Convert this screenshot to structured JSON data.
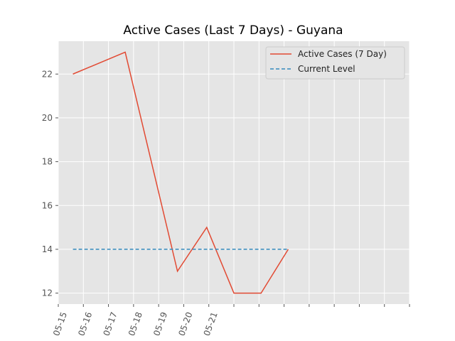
{
  "chart_data": {
    "type": "line",
    "title": "Active Cases (Last 7 Days) - Guyana",
    "xlabel": "",
    "ylabel": "",
    "x_tick_labels": [
      "05-15",
      "05-16",
      "05-17",
      "05-18",
      "05-19",
      "05-20",
      "05-21"
    ],
    "x_range": [
      "2020-05-15",
      "2020-05-22"
    ],
    "ylim": [
      11.5,
      23.5
    ],
    "y_ticks": [
      12,
      14,
      16,
      18,
      20,
      22
    ],
    "grid": true,
    "legend_position": "top-right",
    "series": [
      {
        "name": "Active Cases (7 Day)",
        "style": "solid",
        "color": "#E24A33",
        "x": [
          "2020-05-15 14:00",
          "2020-05-17 16:00",
          "2020-05-19 18:00",
          "2020-05-20 22:00",
          "2020-05-21 24:00",
          "2020-05-23 02:00",
          "2020-05-24 04:00"
        ],
        "values": [
          22,
          23,
          13,
          15,
          12,
          12,
          14
        ]
      },
      {
        "name": "Current Level",
        "style": "dashed",
        "color": "#348ABD",
        "x": [
          "2020-05-15 14:00",
          "2020-05-24 04:00"
        ],
        "values": [
          14,
          14
        ]
      }
    ]
  }
}
